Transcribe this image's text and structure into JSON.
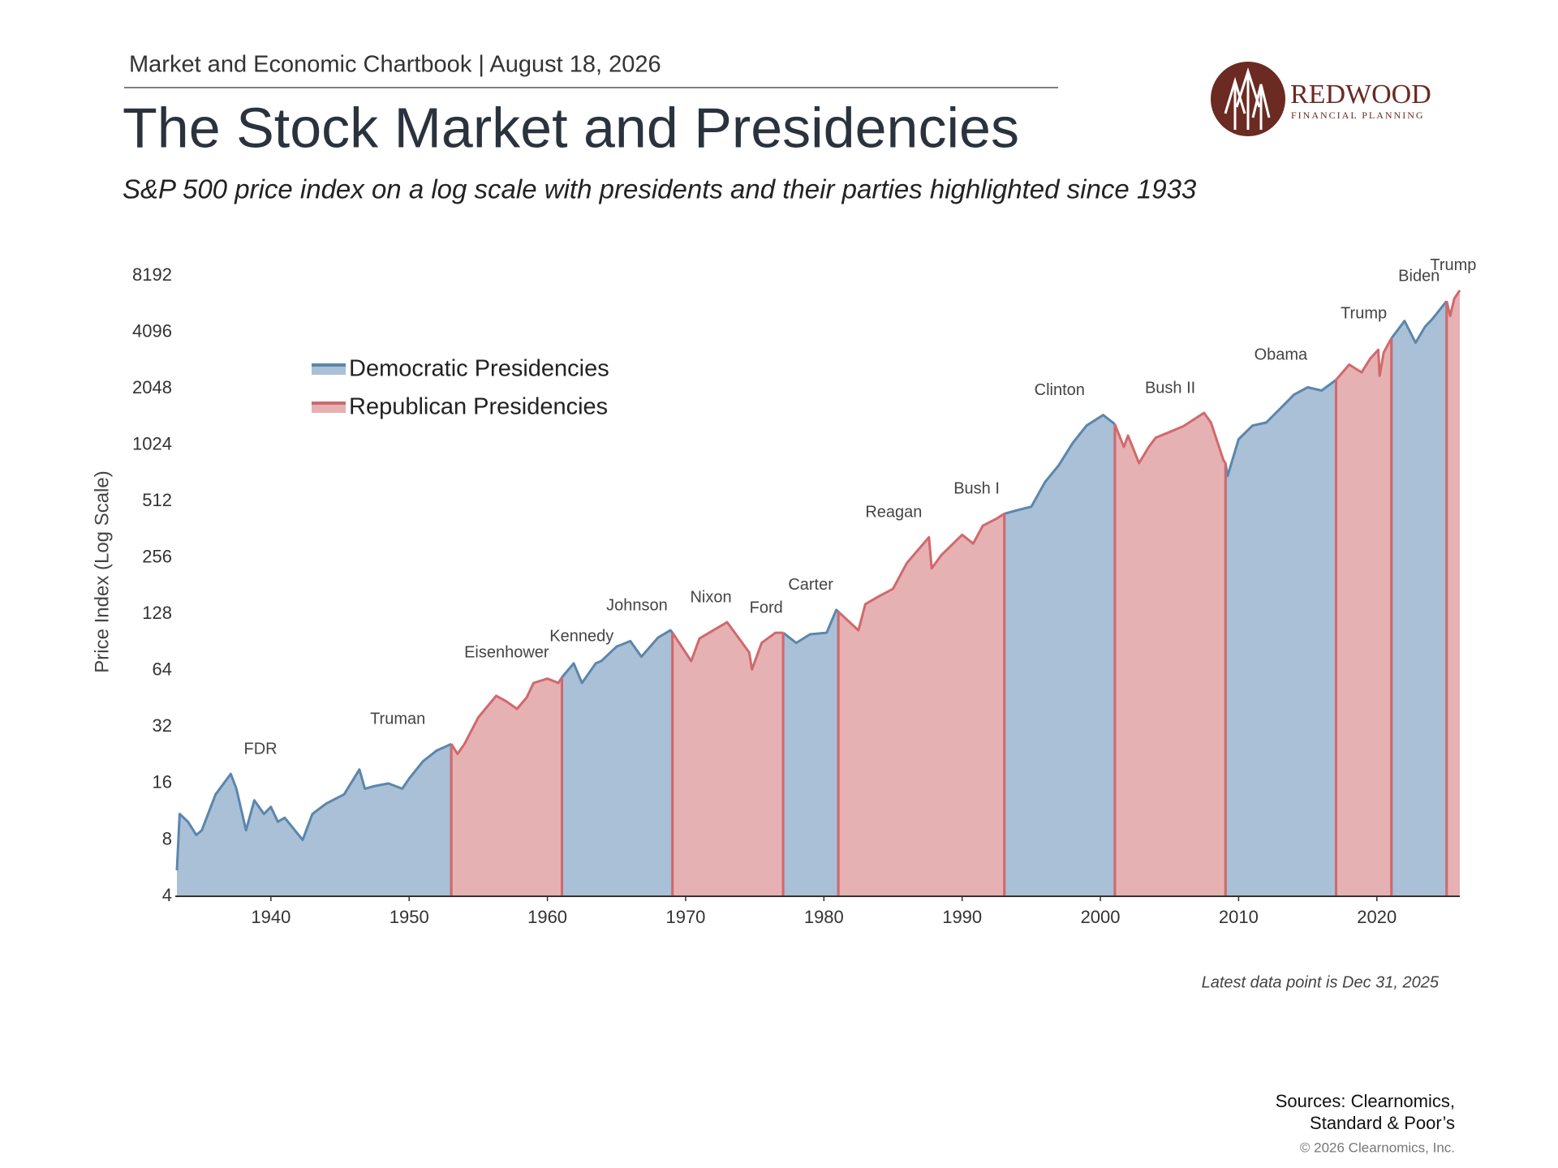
{
  "header": {
    "text": "Market and Economic Chartbook | August 18, 2026"
  },
  "logo": {
    "name": "REDWOOD",
    "tagline": "FINANCIAL PLANNING"
  },
  "chart_data": {
    "type": "area",
    "title": "The Stock Market and Presidencies",
    "subtitle": "S&P 500 price index on a log scale with presidents and their parties highlighted since 1933",
    "y_label": "Price Index (Log Scale)",
    "y_scale": "log",
    "xlim": [
      1933.2,
      2026
    ],
    "xticks": [
      1940,
      1950,
      1960,
      1970,
      1980,
      1990,
      2000,
      2010,
      2020
    ],
    "ylim": [
      4,
      8192
    ],
    "yticks": [
      4,
      8,
      16,
      32,
      64,
      128,
      256,
      512,
      1024,
      2048,
      4096,
      8192
    ],
    "legend": "upper-left",
    "x": [
      1933.2,
      1933.4,
      1934,
      1934.6,
      1935,
      1936,
      1937.1,
      1937.5,
      1938.2,
      1938.8,
      1939.5,
      1940,
      1940.5,
      1941,
      1942.3,
      1943,
      1944,
      1945.3,
      1946.4,
      1946.8,
      1947.5,
      1948.5,
      1949.5,
      1950,
      1951,
      1952,
      1953.05,
      1953.5,
      1954,
      1955,
      1956.3,
      1957,
      1957.8,
      1958.5,
      1959,
      1960,
      1960.8,
      1961.05,
      1961.9,
      1962.5,
      1963.5,
      1963.9,
      1965,
      1966,
      1966.8,
      1968,
      1968.9,
      1969.05,
      1970.4,
      1971,
      1972,
      1973,
      1974,
      1974.6,
      1974.8,
      1975.5,
      1976.5,
      1977.05,
      1978,
      1979,
      1980.2,
      1980.9,
      1981.05,
      1982.5,
      1983,
      1984,
      1985,
      1986,
      1987.6,
      1987.8,
      1988.5,
      1989.05,
      1990,
      1990.8,
      1991.5,
      1992.5,
      1993.05,
      1994,
      1995,
      1996,
      1997,
      1998,
      1999,
      2000.2,
      2000.9,
      2001.05,
      2001.7,
      2002,
      2002.8,
      2003.5,
      2004,
      2005,
      2006,
      2007.5,
      2008,
      2008.9,
      2009.05,
      2009.2,
      2010,
      2011,
      2012,
      2013,
      2014,
      2015,
      2016,
      2017.05,
      2018,
      2018.9,
      2019.5,
      2020.1,
      2020.2,
      2020.5,
      2021.05,
      2022,
      2022.8,
      2023.5,
      2024,
      2025.05,
      2025.3,
      2025.6,
      2026
    ],
    "series": [
      {
        "name": "Democratic Presidencies",
        "color": "#5b86ad",
        "fill": "#a9c0d6",
        "values": [
          5.5,
          11,
          10,
          8.5,
          9,
          14,
          18,
          15,
          9,
          13,
          11,
          12,
          10,
          10.5,
          8,
          11,
          12.5,
          14,
          19,
          15,
          15.5,
          16,
          15,
          17,
          21,
          24,
          26,
          null,
          null,
          null,
          null,
          null,
          null,
          null,
          null,
          null,
          null,
          59,
          70,
          55,
          70,
          72,
          86,
          92,
          76,
          96,
          105,
          102,
          null,
          null,
          null,
          null,
          null,
          null,
          null,
          null,
          null,
          102,
          90,
          100,
          102,
          135,
          132,
          null,
          null,
          null,
          null,
          null,
          null,
          null,
          null,
          null,
          null,
          null,
          null,
          null,
          440,
          460,
          480,
          650,
          800,
          1050,
          1300,
          1480,
          1350,
          1320,
          null,
          null,
          null,
          null,
          null,
          null,
          null,
          null,
          null,
          null,
          820,
          700,
          1100,
          1300,
          1350,
          1600,
          1900,
          2080,
          2000,
          2280,
          null,
          null,
          null,
          null,
          null,
          null,
          3800,
          4700,
          3600,
          4400,
          4800,
          6000,
          null,
          null,
          null
        ]
      },
      {
        "name": "Republican Presidencies",
        "color": "#d0696c",
        "fill": "#e6b1b2",
        "values": [
          null,
          null,
          null,
          null,
          null,
          null,
          null,
          null,
          null,
          null,
          null,
          null,
          null,
          null,
          null,
          null,
          null,
          null,
          null,
          null,
          null,
          null,
          null,
          null,
          null,
          null,
          26,
          23,
          26,
          36,
          47,
          44,
          40,
          46,
          55,
          58,
          55,
          59,
          null,
          null,
          null,
          null,
          null,
          null,
          null,
          null,
          null,
          102,
          72,
          95,
          105,
          116,
          92,
          80,
          65,
          90,
          102,
          102,
          null,
          null,
          null,
          null,
          132,
          105,
          145,
          160,
          175,
          240,
          330,
          225,
          265,
          290,
          340,
          305,
          380,
          415,
          440,
          null,
          null,
          null,
          null,
          null,
          null,
          null,
          null,
          1320,
          1000,
          1150,
          820,
          1000,
          1120,
          1200,
          1290,
          1520,
          1350,
          850,
          820,
          null,
          null,
          null,
          null,
          null,
          null,
          null,
          null,
          2280,
          2750,
          2500,
          2950,
          3300,
          2400,
          3200,
          3800,
          null,
          null,
          null,
          null,
          6000,
          5000,
          6200,
          6850
        ]
      }
    ],
    "presidents": [
      {
        "name": "FDR",
        "start": 1933.2
      },
      {
        "name": "Truman",
        "start": 1945.3
      },
      {
        "name": "Eisenhower",
        "start": 1953.05
      },
      {
        "name": "Kennedy",
        "start": 1961.05
      },
      {
        "name": "Johnson",
        "start": 1963.9
      },
      {
        "name": "Nixon",
        "start": 1969.05
      },
      {
        "name": "Ford",
        "start": 1974.6
      },
      {
        "name": "Carter",
        "start": 1977.05
      },
      {
        "name": "Reagan",
        "start": 1981.05
      },
      {
        "name": "Bush I",
        "start": 1989.05
      },
      {
        "name": "Clinton",
        "start": 1993.05
      },
      {
        "name": "Bush II",
        "start": 2001.05
      },
      {
        "name": "Obama",
        "start": 2009.05
      },
      {
        "name": "Trump",
        "start": 2017.05
      },
      {
        "name": "Biden",
        "start": 2021.05
      },
      {
        "name": "Trump",
        "start": 2025.05
      }
    ],
    "note": "Latest data point is Dec 31, 2025"
  },
  "footer": {
    "sources": [
      "Sources: Clearnomics,",
      "Standard & Poor’s"
    ],
    "copyright": "© 2026 Clearnomics, Inc."
  }
}
